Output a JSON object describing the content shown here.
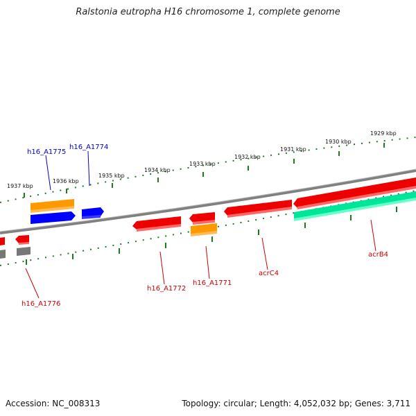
{
  "title": "Ralstonia eutropha H16 chromosome 1, complete genome",
  "footer": {
    "accession": "Accession: NC_008313",
    "summary": "Topology: circular; Length: 4,052,032 bp; Genes: 3,711"
  },
  "colors": {
    "backbone": "#808080",
    "ticks": "#1f7a1f",
    "label_forward": "#0000cc",
    "label_reverse": "#cc0000",
    "red": "#ee0000",
    "orange": "#ff9900",
    "blue": "#0000ff",
    "teal": "#00e699",
    "gray": "#777777"
  },
  "kbp_labels": [
    "1937 kbp",
    "1936 kbp",
    "1935 kbp",
    "1934 kbp",
    "1933 kbp",
    "1932 kbp",
    "1931 kbp",
    "1930 kbp",
    "1929 kbp"
  ],
  "gene_labels": {
    "h16_A1775": "h16_A1775",
    "h16_A1774": "h16_A1774",
    "h16_A1772": "h16_A1772",
    "h16_A1771": "h16_A1771",
    "acrC4": "acrC4",
    "acrB4": "acrB4",
    "h16_A1776": "h16_A1776"
  }
}
